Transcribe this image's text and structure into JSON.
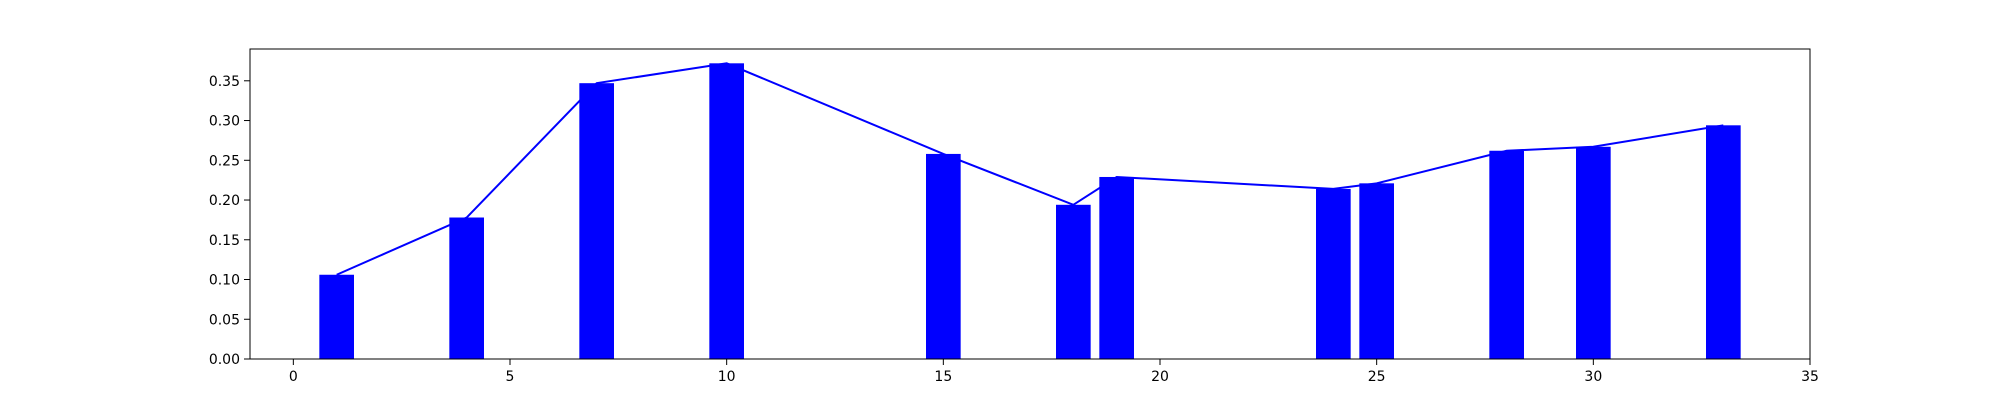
{
  "chart_data": {
    "type": "bar",
    "title": "",
    "xlabel": "",
    "ylabel": "",
    "xlim": [
      -1,
      35
    ],
    "ylim": [
      0,
      0.39
    ],
    "xticks": [
      0,
      5,
      10,
      15,
      20,
      25,
      30,
      35
    ],
    "yticks": [
      0.0,
      0.05,
      0.1,
      0.15,
      0.2,
      0.25,
      0.3,
      0.35
    ],
    "x_tick_labels": [
      "0",
      "5",
      "10",
      "15",
      "20",
      "25",
      "30",
      "35"
    ],
    "y_tick_labels": [
      "0.00",
      "0.05",
      "0.10",
      "0.15",
      "0.20",
      "0.25",
      "0.30",
      "0.35"
    ],
    "grid": false,
    "bar_width": 0.8,
    "x": [
      1,
      4,
      7,
      10,
      15,
      18,
      19,
      24,
      25,
      28,
      30,
      33
    ],
    "values": [
      0.106,
      0.178,
      0.347,
      0.372,
      0.258,
      0.194,
      0.229,
      0.214,
      0.221,
      0.262,
      0.267,
      0.294
    ],
    "colors": {
      "bar": "#0000ff",
      "line": "#0000ff",
      "axis": "#000000"
    }
  }
}
